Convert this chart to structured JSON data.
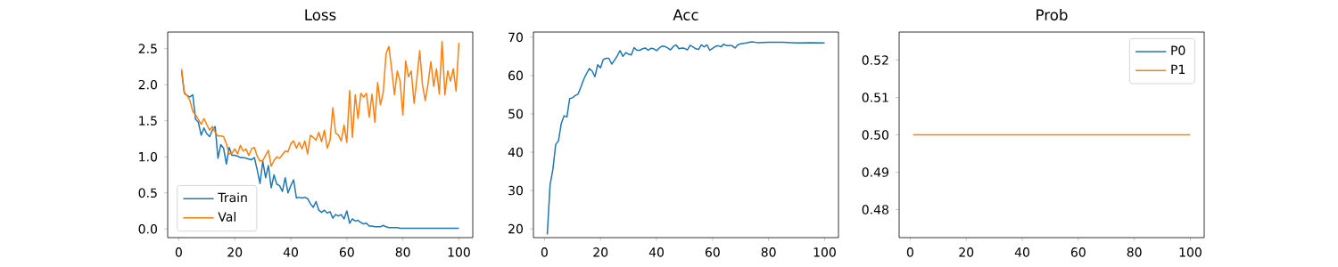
{
  "chart_data": [
    {
      "type": "line",
      "title": "Loss",
      "legend": "bottom left",
      "xlim": [
        -3.95,
        104.95
      ],
      "ylim": [
        -0.12,
        2.73
      ],
      "xticks": [
        0,
        20,
        40,
        60,
        80,
        100
      ],
      "yticks": [
        {
          "value": 0,
          "label": "0.0"
        },
        0.5,
        {
          "value": 1,
          "label": "1.0"
        },
        1.5,
        {
          "value": 2,
          "label": "2.0"
        },
        2.5
      ],
      "x": [
        1,
        2,
        3,
        4,
        5,
        6,
        7,
        8,
        9,
        10,
        11,
        12,
        13,
        14,
        15,
        16,
        17,
        18,
        19,
        20,
        21,
        22,
        23,
        24,
        25,
        26,
        27,
        28,
        29,
        30,
        31,
        32,
        33,
        34,
        35,
        36,
        37,
        38,
        39,
        40,
        41,
        42,
        43,
        44,
        45,
        46,
        47,
        48,
        49,
        50,
        51,
        52,
        53,
        54,
        55,
        56,
        57,
        58,
        59,
        60,
        61,
        62,
        63,
        64,
        65,
        66,
        67,
        68,
        69,
        70,
        71,
        72,
        73,
        74,
        75,
        76,
        77,
        78,
        79,
        80,
        81,
        82,
        83,
        84,
        85,
        86,
        87,
        88,
        89,
        90,
        91,
        92,
        93,
        94,
        95,
        96,
        97,
        98,
        99,
        100
      ],
      "series": [
        {
          "name": "Train",
          "color": "#1f77b4",
          "values": [
            2.19,
            1.88,
            1.85,
            1.83,
            1.86,
            1.52,
            1.48,
            1.3,
            1.4,
            1.32,
            1.28,
            1.37,
            1.42,
            0.98,
            1.17,
            1.12,
            0.9,
            1.13,
            1.02,
            1.02,
            1.01,
            0.99,
            0.99,
            0.98,
            0.97,
            0.96,
            0.99,
            0.82,
            0.63,
            0.94,
            0.71,
            0.88,
            0.57,
            0.75,
            0.62,
            0.6,
            0.52,
            0.71,
            0.5,
            0.6,
            0.68,
            0.43,
            0.44,
            0.43,
            0.44,
            0.42,
            0.35,
            0.3,
            0.38,
            0.26,
            0.23,
            0.26,
            0.22,
            0.24,
            0.15,
            0.2,
            0.18,
            0.2,
            0.14,
            0.25,
            0.08,
            0.14,
            0.11,
            0.12,
            0.09,
            0.07,
            0.08,
            0.04,
            0.04,
            0.03,
            0.03,
            0.03,
            0.05,
            0.03,
            0.02,
            0.02,
            0.02,
            0.02,
            0.01,
            0.01,
            0.01,
            0.01,
            0.01,
            0.01,
            0.01,
            0.01,
            0.01,
            0.01,
            0.01,
            0.01,
            0.01,
            0.01,
            0.01,
            0.01,
            0.01,
            0.01,
            0.01,
            0.01,
            0.01,
            0.01
          ]
        },
        {
          "name": "Val",
          "color": "#ff7f0e",
          "values": [
            2.22,
            1.89,
            1.85,
            1.78,
            1.63,
            1.58,
            1.52,
            1.45,
            1.53,
            1.45,
            1.37,
            1.42,
            1.34,
            1.29,
            1.29,
            1.28,
            1.18,
            1.04,
            1.05,
            1.11,
            1.04,
            1.16,
            1.08,
            1.11,
            1.02,
            1.11,
            1.13,
            1.01,
            0.94,
            0.95,
            1.02,
            1.09,
            0.87,
            0.95,
            1.0,
            0.98,
            1.03,
            1.08,
            1.07,
            1.18,
            1.22,
            1.12,
            1.2,
            1.11,
            1.22,
            1.04,
            1.3,
            1.27,
            1.23,
            1.34,
            1.21,
            1.37,
            1.12,
            1.23,
            1.68,
            1.33,
            1.3,
            1.22,
            1.44,
            1.2,
            1.92,
            1.27,
            1.86,
            1.53,
            1.88,
            1.83,
            1.88,
            1.55,
            1.87,
            1.48,
            2.03,
            1.72,
            1.9,
            2.43,
            2.53,
            2.22,
            1.86,
            2.19,
            2.05,
            1.58,
            2.33,
            2.11,
            2.19,
            1.74,
            2.08,
            2.47,
            2.0,
            1.78,
            2.02,
            2.32,
            1.98,
            2.22,
            1.87,
            2.6,
            1.86,
            2.19,
            2.05,
            2.22,
            1.91,
            2.58
          ]
        }
      ]
    },
    {
      "type": "line",
      "title": "Acc",
      "xlim": [
        -3.95,
        104.95
      ],
      "ylim": [
        17.7,
        71.36
      ],
      "xticks": [
        0,
        20,
        40,
        60,
        80,
        100
      ],
      "yticks": [
        20,
        30,
        40,
        50,
        60,
        70
      ],
      "x": [
        1,
        2,
        3,
        4,
        5,
        6,
        7,
        8,
        9,
        10,
        11,
        12,
        13,
        14,
        15,
        16,
        17,
        18,
        19,
        20,
        21,
        22,
        23,
        24,
        25,
        26,
        27,
        28,
        29,
        30,
        31,
        32,
        33,
        34,
        35,
        36,
        37,
        38,
        39,
        40,
        41,
        42,
        43,
        44,
        45,
        46,
        47,
        48,
        49,
        50,
        51,
        52,
        53,
        54,
        55,
        56,
        57,
        58,
        59,
        60,
        61,
        62,
        63,
        64,
        65,
        66,
        67,
        68,
        69,
        70,
        72,
        74,
        76,
        80,
        85,
        90,
        95,
        100
      ],
      "series": [
        {
          "color": "#1f77b4",
          "values": [
            18.5,
            31.5,
            35.5,
            42,
            43,
            47.5,
            49.5,
            49.2,
            54,
            54.2,
            54.8,
            55.2,
            57,
            59,
            60.5,
            61.8,
            61.2,
            59.7,
            62.8,
            62,
            64.2,
            64.5,
            64.5,
            63,
            64,
            65.2,
            66.5,
            65,
            66,
            65.6,
            65.4,
            67.3,
            66.6,
            66.6,
            67,
            67.2,
            66.6,
            67.1,
            67,
            66.5,
            67.2,
            67.7,
            67.6,
            67.2,
            66.7,
            67.6,
            68,
            67,
            67.2,
            67.1,
            66.7,
            67.9,
            67.5,
            67,
            66.8,
            68,
            67.5,
            68,
            66.6,
            67.1,
            67.6,
            67.8,
            67.5,
            68.2,
            67.8,
            67.8,
            67.8,
            67.2,
            68,
            68.3,
            68.5,
            68.8,
            68.6,
            68.7,
            68.7,
            68.5,
            68.6,
            68.5
          ]
        }
      ]
    },
    {
      "type": "line",
      "title": "Prob",
      "legend": "top right",
      "xlim": [
        -3.95,
        104.95
      ],
      "ylim": [
        0.4725,
        0.5275
      ],
      "xticks": [
        0,
        20,
        40,
        60,
        80,
        100
      ],
      "yticks": [
        0.48,
        0.49,
        {
          "value": 0.5,
          "label": "0.50"
        },
        0.51,
        0.52
      ],
      "x": [
        1,
        100
      ],
      "series": [
        {
          "name": "P0",
          "color": "#1f77b4",
          "values": [
            null,
            null
          ]
        },
        {
          "name": "P1",
          "color": "#ff7f0e",
          "values": [
            0.5,
            0.5
          ]
        }
      ]
    }
  ]
}
